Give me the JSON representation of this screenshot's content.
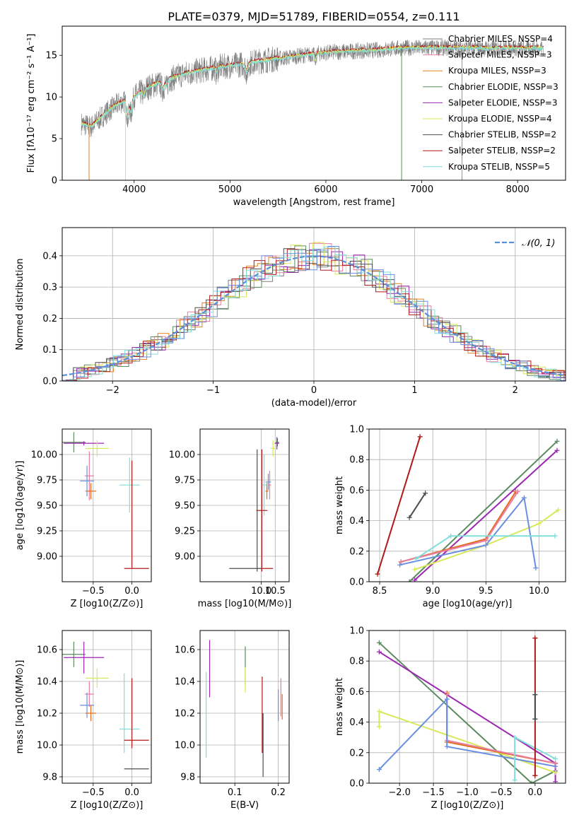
{
  "figure": {
    "title": "PLATE=0379, MJD=51789, FIBERID=0554, z=0.111"
  },
  "colors": {
    "chabrier_miles": "#7f7f7f",
    "salpeter_miles": "#e87ea1",
    "kroupa_miles": "#e2821f",
    "chabrier_elodie": "#5b8a5f",
    "salpeter_elodie": "#9c27b0",
    "kroupa_elodie": "#d8e85a",
    "chabrier_stelib": "#4d4d4d",
    "salpeter_stelib": "#b01919",
    "kroupa_stelib": "#80dedc",
    "kroupa_miles_line": "#e56b1f",
    "kroupa_miles_alt": "#6a8fe0",
    "normal_curve": "#5b8fd9"
  },
  "chart_data": [
    {
      "id": "spectrum",
      "type": "line",
      "title": "PLATE=0379, MJD=51789, FIBERID=0554, z=0.111",
      "xlabel": "wavelength [Angstrom, rest frame]",
      "ylabel": "Flux [fλ10⁻¹⁷ erg cm⁻² s⁻¹ A⁻¹]",
      "xlim": [
        3250,
        8500
      ],
      "ylim": [
        0,
        18.5
      ],
      "xticks": [
        4000,
        5000,
        6000,
        7000,
        8000
      ],
      "yticks": [
        0,
        5,
        10,
        15
      ],
      "legend_position": "top-right",
      "legend": [
        {
          "label": "Chabrier MILES, NSSP=4",
          "color": "#7f7f7f"
        },
        {
          "label": "Salpeter MILES, NSSP=3",
          "color": "#e87ea1"
        },
        {
          "label": "Kroupa MILES, NSSP=3",
          "color": "#e2821f"
        },
        {
          "label": "Chabrier ELODIE, NSSP=3",
          "color": "#5b8a5f"
        },
        {
          "label": "Salpeter ELODIE, NSSP=3",
          "color": "#9c27b0"
        },
        {
          "label": "Kroupa ELODIE, NSSP=4",
          "color": "#d8e85a"
        },
        {
          "label": "Chabrier STELIB, NSSP=2",
          "color": "#4d4d4d"
        },
        {
          "label": "Salpeter STELIB, NSSP=2",
          "color": "#b01919"
        },
        {
          "label": "Kroupa STELIB, NSSP=5",
          "color": "#80dedc"
        }
      ],
      "continuum": {
        "x": [
          3450,
          3550,
          3650,
          3750,
          3850,
          3950,
          4050,
          4150,
          4300,
          4500,
          4700,
          4900,
          5100,
          5300,
          5500,
          5700,
          5900,
          6100,
          6300,
          6500,
          6700,
          6900,
          7100,
          7300,
          7500,
          7700,
          7900,
          8100,
          8270
        ],
        "y": [
          6.8,
          6.4,
          7.5,
          8.5,
          9.3,
          9.6,
          10.4,
          11.2,
          11.8,
          12.7,
          13.2,
          13.6,
          13.9,
          14.3,
          14.6,
          14.9,
          15.2,
          15.4,
          15.5,
          15.6,
          15.8,
          15.9,
          15.9,
          15.9,
          15.9,
          15.8,
          15.9,
          15.8,
          15.9
        ]
      },
      "drops": [
        {
          "x": 3530,
          "color": "#e2821f"
        },
        {
          "x": 3910,
          "color": "#d8e85a"
        },
        {
          "x": 6790,
          "color": "#5b8a5f"
        },
        {
          "x": 7420,
          "color": "#e2821f"
        }
      ]
    },
    {
      "id": "normed_distribution",
      "type": "line",
      "xlabel": "(data-model)/error",
      "ylabel": "Normed distribution",
      "xlim": [
        -2.5,
        2.5
      ],
      "ylim": [
        0,
        0.49
      ],
      "xticks": [
        -2,
        -1,
        0,
        1,
        2
      ],
      "yticks": [
        0.0,
        0.1,
        0.2,
        0.3,
        0.4
      ],
      "legend_position": "top-right",
      "normal_label": "𝒩(0, 1)"
    },
    {
      "id": "age_vs_Z",
      "type": "scatter",
      "xlabel": "Z [log10(Z/Z⊙)]",
      "ylabel": "age  [log10(age/yr)]",
      "xlim": [
        -0.9,
        0.25
      ],
      "ylim": [
        8.75,
        10.25
      ],
      "xticks": [
        -0.5,
        0.0
      ],
      "yticks": [
        9.0,
        9.25,
        9.5,
        9.75,
        10.0
      ],
      "points": [
        {
          "x": -0.75,
          "xerr": 0.15,
          "y": 10.12,
          "yerr": 0.1,
          "color": "#5b8a5f"
        },
        {
          "x": -0.62,
          "xerr": 0.26,
          "y": 10.11,
          "yerr": 0.02,
          "color": "#9c27b0"
        },
        {
          "x": -0.45,
          "xerr": 0.15,
          "y": 10.06,
          "yerr": 0.08,
          "color": "#d8e85a"
        },
        {
          "x": -0.55,
          "xerr": 0.06,
          "y": 9.79,
          "yerr": 0.24,
          "color": "#e87ea1"
        },
        {
          "x": -0.58,
          "xerr": 0.09,
          "y": 9.74,
          "yerr": 0.15,
          "color": "#6a8fe0"
        },
        {
          "x": -0.53,
          "xerr": 0.07,
          "y": 9.64,
          "yerr": 0.08,
          "color": "#e56b1f"
        },
        {
          "x": -0.03,
          "xerr": 0.13,
          "y": 9.7,
          "yerr": 0.27,
          "color": "#80dedc"
        },
        {
          "x": 0.06,
          "xerr": 0.16,
          "y": 8.88,
          "yerr": 0.0,
          "color": "#b01919"
        },
        {
          "x": 0.0,
          "xerr": 0.0,
          "y": 9.41,
          "yerr": 0.53,
          "color": "#b01919"
        }
      ]
    },
    {
      "id": "age_vs_mass",
      "type": "scatter",
      "xlabel": "mass [log10(M/M⊙)]",
      "ylabel": "",
      "xlim": [
        7.8,
        11.0
      ],
      "ylim": [
        8.75,
        10.25
      ],
      "xticks": [
        10.0,
        10.5
      ],
      "yticks": [
        9.0,
        9.25,
        9.5,
        9.75,
        10.0
      ],
      "points": [
        {
          "x": 10.58,
          "xerr": 0.06,
          "y": 10.12,
          "yerr": 0.04,
          "color": "#5b8a5f"
        },
        {
          "x": 10.56,
          "xerr": 0.08,
          "y": 10.11,
          "yerr": 0.06,
          "color": "#9c27b0"
        },
        {
          "x": 10.42,
          "xerr": 0.08,
          "y": 10.06,
          "yerr": 0.08,
          "color": "#d8e85a"
        },
        {
          "x": 10.3,
          "xerr": 0.05,
          "y": 9.7,
          "yerr": 0.14,
          "color": "#e87ea1"
        },
        {
          "x": 10.25,
          "xerr": 0.1,
          "y": 9.73,
          "yerr": 0.08,
          "color": "#6a8fe0"
        },
        {
          "x": 10.2,
          "xerr": 0.05,
          "y": 9.64,
          "yerr": 0.08,
          "color": "#e56b1f"
        },
        {
          "x": 10.1,
          "xerr": 0.1,
          "y": 9.7,
          "yerr": 0.3,
          "color": "#80dedc"
        },
        {
          "x": 10.02,
          "xerr": 0.2,
          "y": 9.45,
          "yerr": 0.6,
          "color": "#b01919"
        },
        {
          "x": 9.85,
          "xerr": 0.02,
          "y": 9.45,
          "yerr": 0.6,
          "color": "#4d4d4d"
        }
      ],
      "hlines": [
        {
          "x0": 8.85,
          "x1": 10.0,
          "y": 8.88,
          "color": "#4d4d4d"
        },
        {
          "x0": 10.0,
          "x1": 10.42,
          "y": 8.88,
          "color": "#b01919"
        }
      ]
    },
    {
      "id": "weight_vs_age",
      "type": "line",
      "xlabel": "age  [log10(age/yr)]",
      "ylabel": "mass weight",
      "xlim": [
        8.4,
        10.25
      ],
      "ylim": [
        0.0,
        1.0
      ],
      "xticks": [
        8.5,
        9.0,
        9.5,
        10.0
      ],
      "yticks": [
        0.0,
        0.2,
        0.4,
        0.6,
        0.8,
        1.0
      ],
      "series": [
        {
          "color": "#b01919",
          "x": [
            8.48,
            8.88
          ],
          "y": [
            0.05,
            0.95
          ]
        },
        {
          "color": "#4d4d4d",
          "x": [
            8.78,
            8.93
          ],
          "y": [
            0.42,
            0.58
          ]
        },
        {
          "color": "#5b8a5f",
          "x": [
            8.78,
            10.17
          ],
          "y": [
            0.0,
            0.92
          ]
        },
        {
          "color": "#9c27b0",
          "x": [
            8.83,
            10.17
          ],
          "y": [
            0.01,
            0.86
          ]
        },
        {
          "color": "#d8e85a",
          "x": [
            8.83,
            9.5,
            10.0,
            10.18
          ],
          "y": [
            0.08,
            0.24,
            0.38,
            0.47
          ]
        },
        {
          "color": "#e56b1f",
          "x": [
            8.7,
            9.5,
            9.78
          ],
          "y": [
            0.13,
            0.28,
            0.59
          ]
        },
        {
          "color": "#e87ea1",
          "x": [
            8.7,
            9.5,
            9.8
          ],
          "y": [
            0.13,
            0.27,
            0.59
          ]
        },
        {
          "color": "#6a8fe0",
          "x": [
            8.69,
            9.5,
            9.86,
            9.97
          ],
          "y": [
            0.11,
            0.24,
            0.55,
            0.09
          ]
        },
        {
          "color": "#80dedc",
          "x": [
            8.84,
            9.17,
            10.15
          ],
          "y": [
            0.15,
            0.3,
            0.3
          ]
        }
      ]
    },
    {
      "id": "mass_vs_Z",
      "type": "scatter",
      "xlabel": "Z [log10(Z/Z⊙)]",
      "ylabel": "mass [log10(M/M⊙)]",
      "xlim": [
        -0.9,
        0.25
      ],
      "ylim": [
        9.76,
        10.72
      ],
      "xticks": [
        -0.5,
        0.0
      ],
      "yticks": [
        9.8,
        10.0,
        10.2,
        10.4,
        10.6
      ],
      "points": [
        {
          "x": -0.75,
          "xerr": 0.15,
          "y": 10.57,
          "yerr": 0.08,
          "color": "#5b8a5f"
        },
        {
          "x": -0.62,
          "xerr": 0.26,
          "y": 10.55,
          "yerr": 0.1,
          "color": "#9c27b0"
        },
        {
          "x": -0.45,
          "xerr": 0.15,
          "y": 10.42,
          "yerr": 0.06,
          "color": "#d8e85a"
        },
        {
          "x": -0.55,
          "xerr": 0.06,
          "y": 10.32,
          "yerr": 0.08,
          "color": "#e87ea1"
        },
        {
          "x": -0.58,
          "xerr": 0.09,
          "y": 10.25,
          "yerr": 0.08,
          "color": "#6a8fe0"
        },
        {
          "x": -0.53,
          "xerr": 0.07,
          "y": 10.2,
          "yerr": 0.05,
          "color": "#e56b1f"
        },
        {
          "x": -0.03,
          "xerr": 0.13,
          "y": 10.1,
          "yerr": 0.0,
          "color": "#80dedc"
        },
        {
          "x": -0.1,
          "xerr": 0.0,
          "y": 10.2,
          "yerr": 0.25,
          "color": "#80dedc"
        },
        {
          "x": 0.06,
          "xerr": 0.16,
          "y": 10.03,
          "yerr": 0.0,
          "color": "#b01919"
        },
        {
          "x": 0.0,
          "xerr": 0.0,
          "y": 10.2,
          "yerr": 0.22,
          "color": "#b01919"
        },
        {
          "x": 0.06,
          "xerr": 0.16,
          "y": 9.85,
          "yerr": 0.0,
          "color": "#4d4d4d"
        }
      ]
    },
    {
      "id": "mass_vs_ebv",
      "type": "scatter",
      "xlabel": "E(B-V)",
      "ylabel": "",
      "xlim": [
        0.02,
        0.225
      ],
      "ylim": [
        9.76,
        10.72
      ],
      "xticks": [
        0.1,
        0.2
      ],
      "yticks": [
        9.8,
        10.0,
        10.2,
        10.4,
        10.6
      ],
      "points": [
        {
          "x": 0.042,
          "y": 10.48,
          "yerr": 0.18,
          "color": "#9c27b0"
        },
        {
          "x": 0.034,
          "y": 10.19,
          "yerr": 0.27,
          "color": "#80dedc"
        },
        {
          "x": 0.124,
          "y": 10.5,
          "yerr": 0.12,
          "color": "#5b8a5f"
        },
        {
          "x": 0.124,
          "y": 10.41,
          "yerr": 0.08,
          "color": "#d8e85a"
        },
        {
          "x": 0.163,
          "y": 10.19,
          "yerr": 0.24,
          "color": "#b01919"
        },
        {
          "x": 0.165,
          "y": 10.0,
          "yerr": 0.2,
          "color": "#4d4d4d"
        },
        {
          "x": 0.2,
          "y": 10.25,
          "yerr": 0.1,
          "color": "#6a8fe0"
        },
        {
          "x": 0.206,
          "y": 10.3,
          "yerr": 0.12,
          "color": "#e87ea1"
        },
        {
          "x": 0.209,
          "y": 10.24,
          "yerr": 0.08,
          "color": "#e56b1f"
        }
      ]
    },
    {
      "id": "weight_vs_Z",
      "type": "line",
      "xlabel": "Z [log10(Z/Z⊙)]",
      "ylabel": "mass weight",
      "xlim": [
        -2.45,
        0.45
      ],
      "ylim": [
        0.0,
        1.0
      ],
      "xticks": [
        -2.0,
        -1.5,
        -1.0,
        -0.5,
        0.0
      ],
      "yticks": [
        0.0,
        0.2,
        0.4,
        0.6,
        0.8,
        1.0
      ],
      "series": [
        {
          "color": "#5b8a5f",
          "x": [
            -2.3,
            -0.05,
            0.3
          ],
          "y": [
            0.92,
            0.0,
            0.08
          ]
        },
        {
          "color": "#9c27b0",
          "x": [
            -2.3,
            0.3,
            0.3
          ],
          "y": [
            0.86,
            0.13,
            0.01
          ]
        },
        {
          "color": "#d8e85a",
          "x": [
            -2.3,
            -2.3,
            0.3
          ],
          "y": [
            0.37,
            0.47,
            0.07
          ]
        },
        {
          "color": "#e56b1f",
          "x": [
            -1.3,
            -1.3,
            0.3
          ],
          "y": [
            0.59,
            0.27,
            0.13
          ]
        },
        {
          "color": "#e87ea1",
          "x": [
            -1.3,
            -1.3,
            0.3
          ],
          "y": [
            0.58,
            0.28,
            0.13
          ]
        },
        {
          "color": "#6a8fe0",
          "x": [
            -2.3,
            -1.3,
            -1.3,
            0.3
          ],
          "y": [
            0.09,
            0.55,
            0.24,
            0.11
          ]
        },
        {
          "color": "#80dedc",
          "x": [
            -0.3,
            -0.3,
            0.3
          ],
          "y": [
            0.02,
            0.3,
            0.16
          ]
        },
        {
          "color": "#b01919",
          "x": [
            0.0,
            0.0
          ],
          "y": [
            0.05,
            0.95
          ]
        },
        {
          "color": "#4d4d4d",
          "x": [
            0.0,
            0.0
          ],
          "y": [
            0.42,
            0.58
          ]
        }
      ],
      "markers_extra": [
        {
          "x": 0.0,
          "y": 0.58,
          "color": "#4d4d4d"
        },
        {
          "x": 0.0,
          "y": 0.42,
          "color": "#4d4d4d"
        },
        {
          "x": 0.0,
          "y": 0.95,
          "color": "#b01919"
        },
        {
          "x": 0.0,
          "y": 0.05,
          "color": "#b01919"
        }
      ]
    }
  ]
}
